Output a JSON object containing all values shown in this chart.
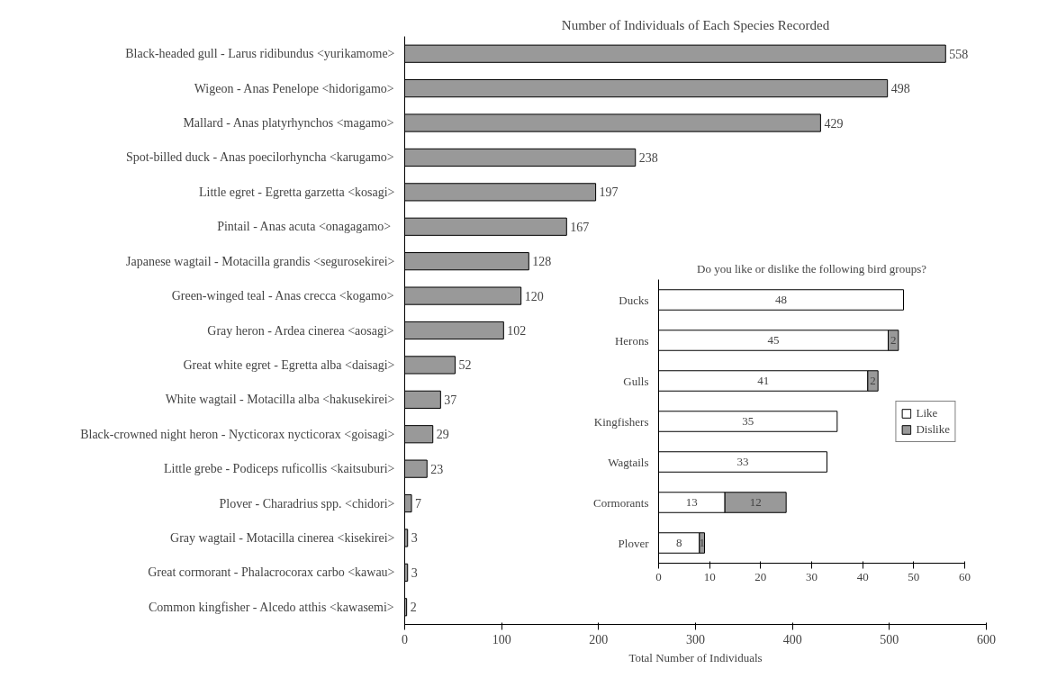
{
  "chart_data": [
    {
      "type": "bar",
      "orientation": "horizontal",
      "title": "Number of Individuals of Each Species Recorded",
      "xlabel": "Total Number of Individuals",
      "categories": [
        "Black-headed gull - Larus ridibundus <yurikamome>",
        "Wigeon - Anas Penelope <hidorigamo>",
        "Mallard - Anas platyrhynchos <magamo>",
        "Spot-billed duck - Anas poecilorhyncha <karugamo>",
        "Little egret - Egretta garzetta <kosagi>",
        "Pintail  - Anas acuta <onagagamo>",
        "Japanese wagtail - Motacilla grandis <segurosekirei>",
        "Green-winged teal - Anas crecca <kogamo>",
        "Gray heron - Ardea cinerea <aosagi>",
        "Great white egret - Egretta alba <daisagi>",
        "White wagtail - Motacilla alba <hakusekirei>",
        "Black-crowned night heron - Nycticorax nycticorax <goisagi>",
        "Little grebe - Podiceps ruficollis <kaitsuburi>",
        "Plover - Charadrius spp. <chidori>",
        "Gray wagtail - Motacilla cinerea <kisekirei>",
        "Great cormorant - Phalacrocorax carbo <kawau>",
        "Common kingfisher - Alcedo atthis <kawasemi>"
      ],
      "series": [
        {
          "color": "#999999",
          "values": [
            558,
            498,
            429,
            238,
            197,
            167,
            128,
            120,
            102,
            52,
            37,
            29,
            23,
            7,
            3,
            3,
            2
          ]
        }
      ],
      "xlim": [
        0,
        600
      ],
      "xticks": [
        0,
        100,
        200,
        300,
        400,
        500,
        600
      ],
      "data_labels": true,
      "grid": false,
      "legend": false
    },
    {
      "type": "bar",
      "orientation": "horizontal",
      "stacked": true,
      "title": "Do you like or dislike the following bird groups?",
      "categories": [
        "Ducks",
        "Herons",
        "Gulls",
        "Kingfishers",
        "Wagtails",
        "Cormorants",
        "Plover"
      ],
      "series": [
        {
          "name": "Like",
          "color": "#ffffff",
          "values": [
            48,
            45,
            41,
            35,
            33,
            13,
            8
          ]
        },
        {
          "name": "Dislike",
          "color": "#999999",
          "values": [
            null,
            2,
            2,
            null,
            null,
            12,
            1
          ]
        }
      ],
      "xlim": [
        0,
        60
      ],
      "xticks": [
        0,
        10,
        20,
        30,
        40,
        50,
        60
      ],
      "data_labels": true,
      "grid": false,
      "legend": "right"
    }
  ]
}
